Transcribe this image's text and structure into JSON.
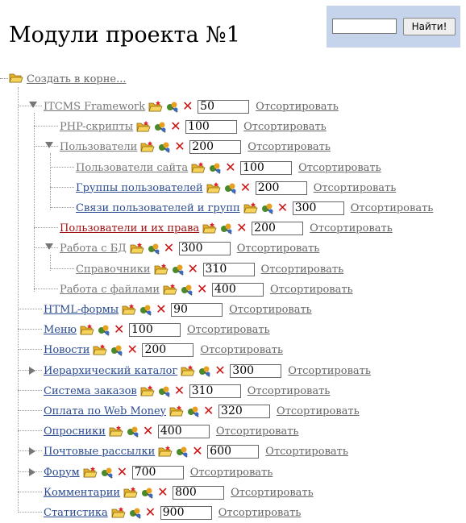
{
  "page": {
    "title": "Модули проекта №1"
  },
  "search": {
    "value": "",
    "button_label": "Найти!"
  },
  "root": {
    "label": "Создать в корне..."
  },
  "sort_label": "Отсортировать",
  "colors": {
    "link_blue": "#2a4a8f",
    "link_gray": "#777777",
    "link_red": "#a01010",
    "delete_red": "#cc1111",
    "search_bg": "#c5d3eb"
  },
  "tree": [
    {
      "label": "ITCMS Framework",
      "value": "50",
      "level": 1,
      "expander": "expanded",
      "style": "gray"
    },
    {
      "label": "PHP-скрипты",
      "value": "100",
      "level": 2,
      "expander": "none",
      "style": "gray"
    },
    {
      "label": "Пользователи",
      "value": "200",
      "level": 2,
      "expander": "expanded",
      "style": "gray"
    },
    {
      "label": "Пользователи сайта",
      "value": "100",
      "level": 3,
      "expander": "none",
      "style": "gray"
    },
    {
      "label": "Группы пользователей",
      "value": "200",
      "level": 3,
      "expander": "none",
      "style": "blue"
    },
    {
      "label": "Связи пользователей и групп",
      "value": "300",
      "level": 3,
      "expander": "none",
      "style": "blue"
    },
    {
      "label": "Пользователи и их права",
      "value": "200",
      "level": 2,
      "expander": "none",
      "style": "red"
    },
    {
      "label": "Работа с БД",
      "value": "300",
      "level": 2,
      "expander": "expanded",
      "style": "gray"
    },
    {
      "label": "Справочники",
      "value": "310",
      "level": 3,
      "expander": "none",
      "style": "gray"
    },
    {
      "label": "Работа с файлами",
      "value": "400",
      "level": 2,
      "expander": "none",
      "style": "gray"
    },
    {
      "label": "HTML-формы",
      "value": "90",
      "level": 1,
      "expander": "none",
      "style": "blue"
    },
    {
      "label": "Меню",
      "value": "100",
      "level": 1,
      "expander": "none",
      "style": "blue"
    },
    {
      "label": "Новости",
      "value": "200",
      "level": 1,
      "expander": "none",
      "style": "blue"
    },
    {
      "label": "Иерархический каталог",
      "value": "300",
      "level": 1,
      "expander": "collapsed",
      "style": "blue"
    },
    {
      "label": "Система заказов",
      "value": "310",
      "level": 1,
      "expander": "none",
      "style": "blue"
    },
    {
      "label": "Оплата по Web Money",
      "value": "320",
      "level": 1,
      "expander": "none",
      "style": "blue"
    },
    {
      "label": "Опросники",
      "value": "400",
      "level": 1,
      "expander": "none",
      "style": "blue"
    },
    {
      "label": "Почтовые рассылки",
      "value": "600",
      "level": 1,
      "expander": "collapsed",
      "style": "blue"
    },
    {
      "label": "Форум",
      "value": "700",
      "level": 1,
      "expander": "collapsed",
      "style": "blue"
    },
    {
      "label": "Комментарии",
      "value": "800",
      "level": 1,
      "expander": "none",
      "style": "blue"
    },
    {
      "label": "Статистика",
      "value": "900",
      "level": 1,
      "expander": "none",
      "style": "blue"
    }
  ]
}
